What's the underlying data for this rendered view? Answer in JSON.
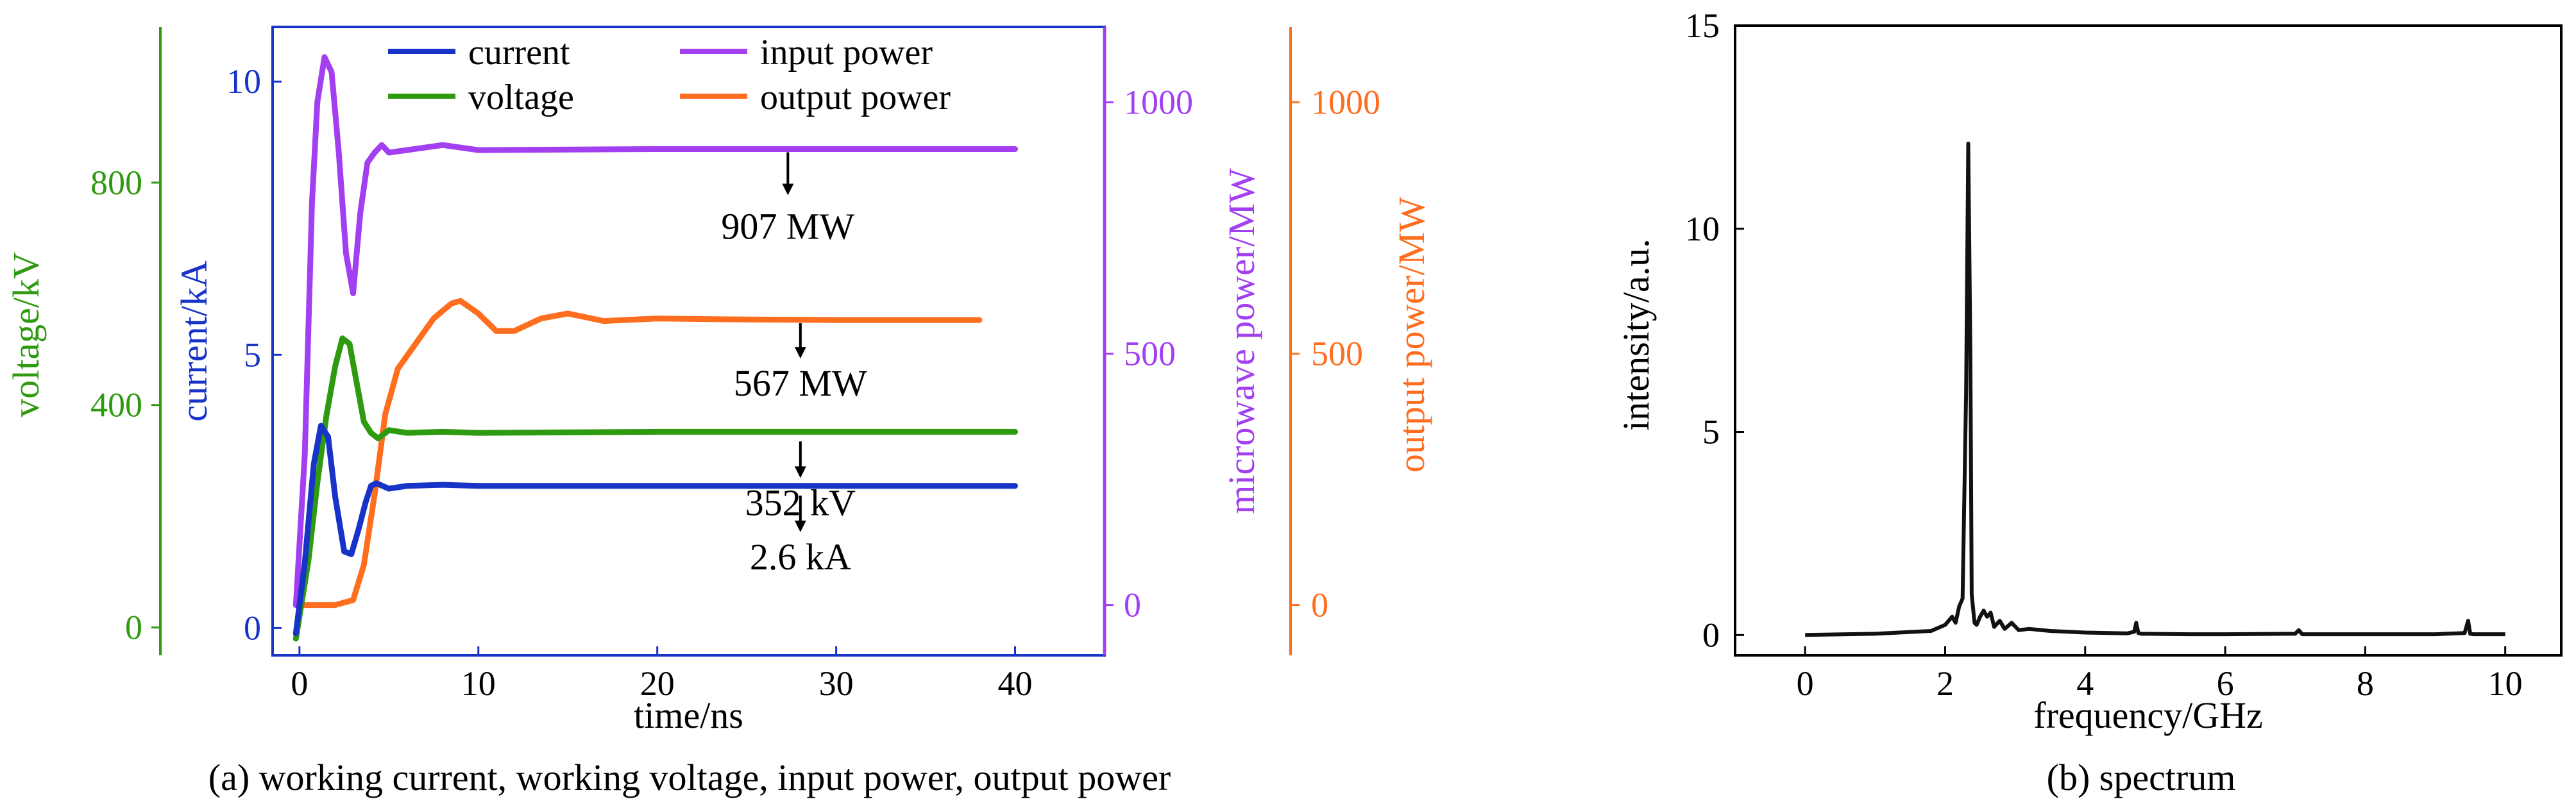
{
  "chart_data": [
    {
      "type": "line",
      "caption": "(a) working current, working voltage, input power, output power",
      "xlabel": "time/ns",
      "xlim": [
        -1.5,
        45
      ],
      "xticks": [
        "0",
        "10",
        "20",
        "30",
        "40"
      ],
      "axes": {
        "voltage": {
          "label": "voltage/kV",
          "ylim": [
            -50,
            1080
          ],
          "ticks": [
            "0",
            "400",
            "800"
          ],
          "color": "#2e9a10"
        },
        "current": {
          "label": "current/kA",
          "ylim": [
            -0.5,
            11
          ],
          "ticks": [
            "0",
            "5",
            "10"
          ],
          "color": "#1733c8"
        },
        "microwave": {
          "label": "microwave power/MW",
          "ylim": [
            -100,
            1150
          ],
          "ticks": [
            "0",
            "500",
            "1000"
          ],
          "color": "#a23ff0"
        },
        "output": {
          "label": "output power/MW",
          "ylim": [
            -100,
            1150
          ],
          "ticks": [
            "0",
            "500",
            "1000"
          ],
          "color": "#ff6d1f"
        }
      },
      "legend": {
        "placement": "top"
      },
      "series": [
        {
          "name": "current",
          "axis": "current",
          "color": "#1733c8",
          "x": [
            -0.2,
            0.3,
            0.8,
            1.2,
            1.6,
            2.0,
            2.5,
            2.9,
            3.3,
            3.7,
            4.0,
            4.3,
            5.0,
            6.0,
            8.0,
            10.0,
            15.0,
            20.0,
            30.0,
            40.0
          ],
          "y": [
            -0.1,
            1.2,
            3.0,
            3.7,
            3.5,
            2.4,
            1.4,
            1.35,
            1.8,
            2.3,
            2.6,
            2.65,
            2.55,
            2.6,
            2.62,
            2.6,
            2.6,
            2.6,
            2.6,
            2.6
          ]
        },
        {
          "name": "voltage",
          "axis": "voltage",
          "color": "#2e9a10",
          "x": [
            -0.2,
            0.5,
            1.0,
            1.5,
            2.0,
            2.4,
            2.8,
            3.2,
            3.6,
            4.0,
            4.4,
            5.0,
            6.0,
            8.0,
            10.0,
            20.0,
            30.0,
            40.0
          ],
          "y": [
            -20,
            120,
            260,
            380,
            470,
            520,
            510,
            440,
            370,
            350,
            340,
            355,
            350,
            352,
            350,
            352,
            352,
            352
          ]
        },
        {
          "name": "input power",
          "axis": "microwave",
          "color": "#a23ff0",
          "x": [
            -0.2,
            0.3,
            0.7,
            1.0,
            1.4,
            1.8,
            2.2,
            2.6,
            3.0,
            3.4,
            3.8,
            4.2,
            4.6,
            5.0,
            6.0,
            8.0,
            10.0,
            20.0,
            30.0,
            40.0
          ],
          "y": [
            0,
            300,
            800,
            1000,
            1090,
            1060,
            900,
            700,
            620,
            780,
            880,
            900,
            915,
            900,
            905,
            915,
            905,
            907,
            907,
            907
          ]
        },
        {
          "name": "output power",
          "axis": "output",
          "color": "#ff6d1f",
          "x": [
            -0.2,
            1.0,
            2.0,
            3.0,
            3.6,
            4.2,
            4.8,
            5.5,
            6.5,
            7.5,
            8.5,
            9.0,
            10.0,
            11.0,
            12.0,
            13.5,
            15.0,
            17.0,
            20.0,
            25.0,
            30.0,
            35.0,
            38.0
          ],
          "y": [
            0,
            0,
            0,
            10,
            80,
            220,
            380,
            470,
            520,
            570,
            600,
            605,
            580,
            545,
            545,
            570,
            580,
            565,
            570,
            568,
            567,
            567,
            567
          ]
        }
      ],
      "annotations": [
        {
          "text": "907 MW",
          "x": 27.3,
          "y_axis": "microwave",
          "y": 907
        },
        {
          "text": "567 MW",
          "x": 28.0,
          "y_axis": "output",
          "y": 567
        },
        {
          "text": "352 kV",
          "x": 28.0,
          "y_axis": "voltage",
          "y": 352
        },
        {
          "text": "2.6 kA",
          "x": 28.0,
          "y_axis": "current",
          "y": 2.6
        }
      ]
    },
    {
      "type": "line",
      "caption": "(b) spectrum",
      "xlabel": "frequency/GHz",
      "ylabel": "intensity/a.u.",
      "xlim": [
        -1.0,
        10.8
      ],
      "ylim": [
        -0.5,
        15
      ],
      "xticks": [
        "0",
        "2",
        "4",
        "6",
        "8",
        "10"
      ],
      "yticks": [
        "0",
        "5",
        "10",
        "15"
      ],
      "series": [
        {
          "name": "",
          "color": "#111111",
          "x": [
            0,
            1.0,
            1.8,
            2.0,
            2.1,
            2.15,
            2.2,
            2.25,
            2.3,
            2.33,
            2.36,
            2.38,
            2.42,
            2.45,
            2.5,
            2.55,
            2.6,
            2.65,
            2.7,
            2.78,
            2.85,
            2.95,
            3.05,
            3.2,
            3.5,
            4.0,
            4.6,
            4.7,
            4.73,
            4.76,
            4.8,
            5.5,
            6.0,
            7.0,
            7.05,
            7.1,
            7.2,
            8.0,
            9.0,
            9.42,
            9.47,
            9.5,
            9.55,
            10.0
          ],
          "y": [
            0,
            0.03,
            0.1,
            0.25,
            0.45,
            0.3,
            0.7,
            0.9,
            6.0,
            12.1,
            7.0,
            1.0,
            0.3,
            0.25,
            0.45,
            0.6,
            0.45,
            0.55,
            0.2,
            0.35,
            0.15,
            0.3,
            0.12,
            0.15,
            0.1,
            0.06,
            0.04,
            0.08,
            0.3,
            0.05,
            0.03,
            0.02,
            0.02,
            0.03,
            0.12,
            0.02,
            0.02,
            0.02,
            0.02,
            0.05,
            0.35,
            0.03,
            0.02,
            0.02
          ]
        }
      ]
    }
  ]
}
